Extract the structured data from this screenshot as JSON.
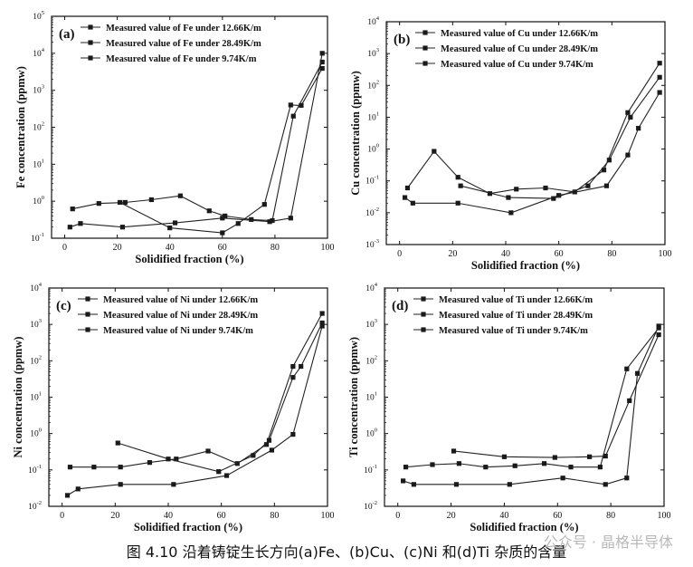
{
  "caption": "图 4.10 沿着铸锭生长方向(a)Fe、(b)Cu、(c)Ni 和(d)Ti 杂质的含量",
  "watermark": "公众号 · 晶格半导体",
  "chart_data": [
    {
      "type": "line",
      "panel_label": "(a)",
      "xlabel": "Solidified fraction (%)",
      "ylabel": "Fe concentration (ppmw)",
      "xlim": [
        -5,
        100
      ],
      "ylim_log10": [
        -1,
        5
      ],
      "x_ticks": [
        0,
        20,
        40,
        60,
        80,
        100
      ],
      "y_ticks_log10": [
        -1,
        0,
        1,
        2,
        3,
        4,
        5
      ],
      "legend_position": "top-left",
      "series": [
        {
          "name": "Measured value of Fe under 12.66K/m",
          "x": [
            3,
            13,
            23,
            33,
            44,
            55,
            61,
            71,
            79,
            87,
            98
          ],
          "y": [
            0.62,
            0.87,
            0.93,
            1.1,
            1.4,
            0.55,
            0.4,
            0.32,
            0.3,
            200,
            5800
          ]
        },
        {
          "name": "Measured value of Fe under 28.49K/m",
          "x": [
            2,
            6,
            22,
            42,
            60,
            78,
            86,
            98
          ],
          "y": [
            0.2,
            0.25,
            0.2,
            0.26,
            0.35,
            0.28,
            0.35,
            10000
          ]
        },
        {
          "name": "Measured value of Fe under 9.74K/m",
          "x": [
            21,
            40,
            60,
            66,
            76,
            86,
            90,
            98
          ],
          "y": [
            0.93,
            0.19,
            0.14,
            0.25,
            0.82,
            400,
            390,
            3900
          ]
        }
      ]
    },
    {
      "type": "line",
      "panel_label": "(b)",
      "xlabel": "Solidified fraction (%)",
      "ylabel": "Cu concentration (ppmw)",
      "xlim": [
        -5,
        100
      ],
      "ylim_log10": [
        -3,
        4
      ],
      "x_ticks": [
        0,
        20,
        40,
        60,
        80,
        100
      ],
      "y_ticks_log10": [
        -3,
        -2,
        -1,
        0,
        1,
        2,
        3,
        4
      ],
      "legend_position": "top-left",
      "series": [
        {
          "name": "Measured value of Cu under 12.66K/m",
          "x": [
            3,
            13,
            22,
            34,
            44,
            55,
            66,
            77,
            86,
            98
          ],
          "y": [
            0.06,
            0.85,
            0.13,
            0.04,
            0.055,
            0.06,
            0.045,
            0.22,
            14,
            500
          ]
        },
        {
          "name": "Measured value of Cu under 28.49K/m",
          "x": [
            2,
            5,
            22,
            42,
            60,
            78,
            86,
            90,
            98
          ],
          "y": [
            0.03,
            0.02,
            0.02,
            0.01,
            0.035,
            0.07,
            0.65,
            4.5,
            60
          ]
        },
        {
          "name": "Measured value of Cu under 9.74K/m",
          "x": [
            23,
            41,
            58,
            71,
            79,
            87,
            98
          ],
          "y": [
            0.07,
            0.03,
            0.028,
            0.07,
            0.45,
            10,
            180
          ]
        }
      ]
    },
    {
      "type": "line",
      "panel_label": "(c)",
      "xlabel": "Solidified fraction (%)",
      "ylabel": "Ni concentration (ppmw)",
      "xlim": [
        -5,
        100
      ],
      "ylim_log10": [
        -2,
        4
      ],
      "x_ticks": [
        0,
        20,
        40,
        60,
        80,
        100
      ],
      "y_ticks_log10": [
        -2,
        -1,
        0,
        1,
        2,
        3,
        4
      ],
      "legend_position": "top-left",
      "series": [
        {
          "name": "Measured value of Ni under 12.66K/m",
          "x": [
            3,
            12,
            22,
            33,
            43,
            55,
            66,
            77,
            87,
            98
          ],
          "y": [
            0.12,
            0.12,
            0.12,
            0.16,
            0.2,
            0.33,
            0.15,
            0.5,
            70,
            2000
          ]
        },
        {
          "name": "Measured value of Ni under 28.49K/m",
          "x": [
            2,
            6,
            22,
            42,
            62,
            79,
            87,
            98
          ],
          "y": [
            0.02,
            0.03,
            0.04,
            0.04,
            0.07,
            0.35,
            0.95,
            900
          ]
        },
        {
          "name": "Measured value of Ni under 9.74K/m",
          "x": [
            21,
            40,
            59,
            72,
            78,
            87,
            90,
            98
          ],
          "y": [
            0.55,
            0.2,
            0.09,
            0.25,
            0.65,
            35,
            70,
            1100
          ]
        }
      ]
    },
    {
      "type": "line",
      "panel_label": "(d)",
      "xlabel": "Solidified fraction (%)",
      "ylabel": "Ti concentration (ppmw)",
      "xlim": [
        -5,
        100
      ],
      "ylim_log10": [
        -2,
        4
      ],
      "x_ticks": [
        0,
        20,
        40,
        60,
        80,
        100
      ],
      "y_ticks_log10": [
        -2,
        -1,
        0,
        1,
        2,
        3,
        4
      ],
      "legend_position": "top-left",
      "series": [
        {
          "name": "Measured value of Ti under 12.66K/m",
          "x": [
            3,
            13,
            23,
            33,
            44,
            55,
            65,
            76,
            86,
            98
          ],
          "y": [
            0.12,
            0.14,
            0.15,
            0.12,
            0.13,
            0.15,
            0.12,
            0.12,
            60,
            800
          ]
        },
        {
          "name": "Measured value of Ti under 28.49K/m",
          "x": [
            2,
            6,
            22,
            42,
            62,
            78,
            86,
            90,
            98
          ],
          "y": [
            0.05,
            0.04,
            0.04,
            0.04,
            0.06,
            0.04,
            0.06,
            45,
            900
          ]
        },
        {
          "name": "Measured value of Ti under 9.74K/m",
          "x": [
            21,
            40,
            59,
            72,
            78,
            87,
            98
          ],
          "y": [
            0.33,
            0.23,
            0.22,
            0.23,
            0.24,
            8,
            520
          ]
        }
      ]
    }
  ]
}
